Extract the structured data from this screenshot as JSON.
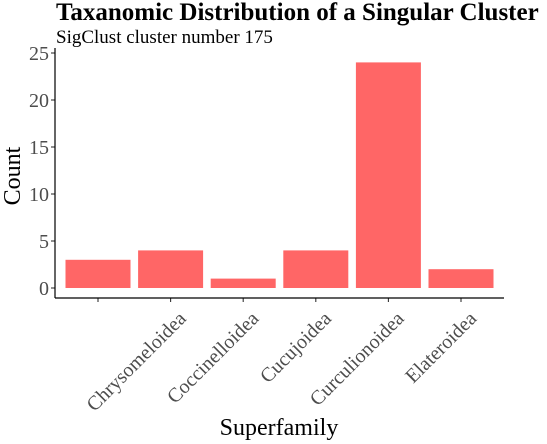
{
  "chart_data": {
    "type": "bar",
    "title": "Taxanomic Distribution of a Singular Cluster",
    "subtitle": "SigClust cluster number 175",
    "xlabel": "Superfamily",
    "ylabel": "Count",
    "categories": [
      "",
      "Chrysomeloidea",
      "Coccinelloidea",
      "Cucujoidea",
      "Curculionoidea",
      "Elateroidea"
    ],
    "values": [
      3,
      4,
      1,
      4,
      24,
      2
    ],
    "ylim": [
      0,
      25
    ],
    "yticks": [
      0,
      5,
      10,
      15,
      20,
      25
    ],
    "bar_color": "#ff6666",
    "grid": false,
    "legend": "none"
  }
}
